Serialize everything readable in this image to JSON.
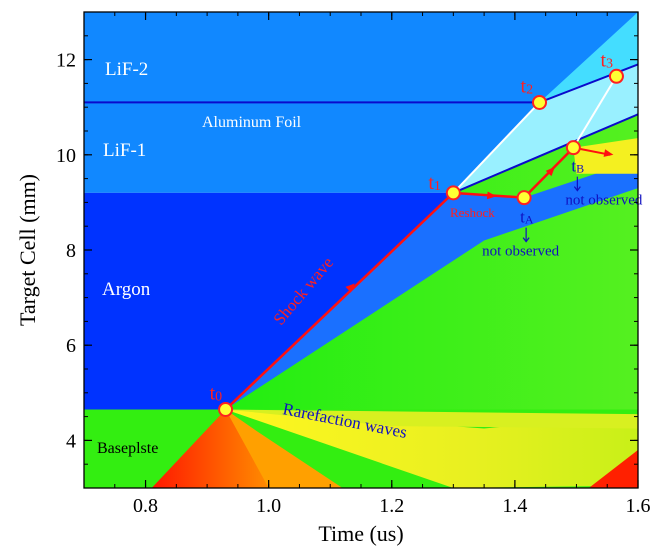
{
  "chart_data": {
    "type": "scatter",
    "xlabel": "Time (us)",
    "ylabel": "Target Cell (mm)",
    "xlim": [
      0.7,
      1.6
    ],
    "ylim": [
      3.0,
      13.0
    ],
    "xticks": [
      0.8,
      1.0,
      1.2,
      1.4,
      1.6
    ],
    "xtick_labels": [
      "0.8",
      "1.0",
      "1.2",
      "1.4",
      "1.6"
    ],
    "yticks": [
      4,
      6,
      8,
      10,
      12
    ],
    "ytick_labels": [
      "4",
      "6",
      "8",
      "10",
      "12"
    ],
    "grid": false,
    "colors": {
      "argon": "#0033ff",
      "lif": "#1188ff",
      "lif1_highlight": "#1199ff",
      "baseplate": "#33ee11",
      "compressed_argon": "#1a70ff",
      "shocked_lif": "#99f0ff",
      "rarefaction_yellow": "#f0f020",
      "hot_red": "#ff2000",
      "shock_path": "#ff1010",
      "interface_line": "#0a0acc",
      "marker_fill": "#ffff33",
      "marker_edge": "#ff2020"
    },
    "regions": [
      {
        "label": "LiF-2"
      },
      {
        "label": "LiF-1"
      },
      {
        "label": "Argon"
      },
      {
        "label": "Baseplste"
      }
    ],
    "interface_lines": [
      {
        "label": "Aluminum Foil",
        "points": [
          [
            0.7,
            11.1
          ],
          [
            1.44,
            11.1
          ],
          [
            1.6,
            11.9
          ]
        ]
      },
      {
        "label": "",
        "points": [
          [
            1.3,
            9.2
          ],
          [
            1.6,
            10.85
          ]
        ]
      }
    ],
    "shock_path": {
      "label": "Shock wave",
      "points": [
        [
          0.93,
          4.65
        ],
        [
          1.3,
          9.2
        ],
        [
          1.415,
          9.1
        ],
        [
          1.495,
          10.15
        ]
      ]
    },
    "reshock_label": "Reshock",
    "rarefaction_label": "Rarefaction waves",
    "markers": [
      {
        "name": "t0",
        "base": "t",
        "sub": "0",
        "x": 0.93,
        "y": 4.65
      },
      {
        "name": "t1",
        "base": "t",
        "sub": "1",
        "x": 1.3,
        "y": 9.2
      },
      {
        "name": "t2",
        "base": "t",
        "sub": "2",
        "x": 1.44,
        "y": 11.1
      },
      {
        "name": "t3",
        "base": "t",
        "sub": "3",
        "x": 1.565,
        "y": 11.65
      },
      {
        "name": "tA",
        "base": "t",
        "sub": "A",
        "x": 1.415,
        "y": 9.1,
        "note": "not observed"
      },
      {
        "name": "tB",
        "base": "t",
        "sub": "B",
        "x": 1.495,
        "y": 10.15,
        "note": "not observed"
      }
    ]
  }
}
